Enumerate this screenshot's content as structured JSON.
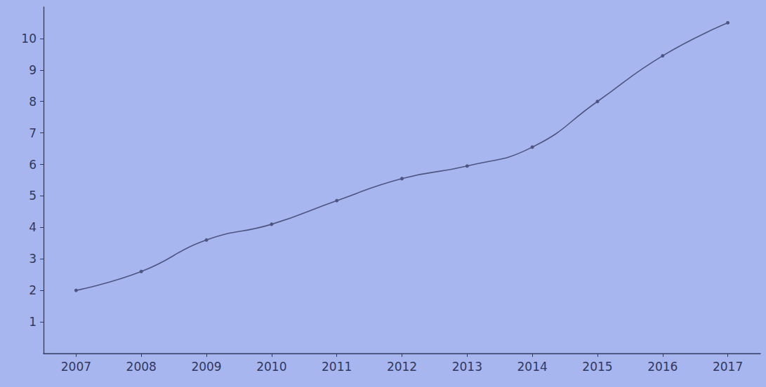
{
  "chart_data": {
    "type": "line",
    "categories": [
      "2007",
      "2008",
      "2009",
      "2010",
      "2011",
      "2012",
      "2013",
      "2014",
      "2015",
      "2016",
      "2017"
    ],
    "values": [
      2.0,
      2.6,
      3.6,
      4.1,
      4.85,
      5.55,
      5.95,
      6.55,
      8.0,
      9.45,
      10.5
    ],
    "color": "#4f5580",
    "ylim": [
      0,
      11
    ],
    "yticks": [
      1,
      2,
      3,
      4,
      5,
      6,
      7,
      8,
      9,
      10
    ],
    "grid": false,
    "marker": "circle",
    "line_style": "solid"
  }
}
